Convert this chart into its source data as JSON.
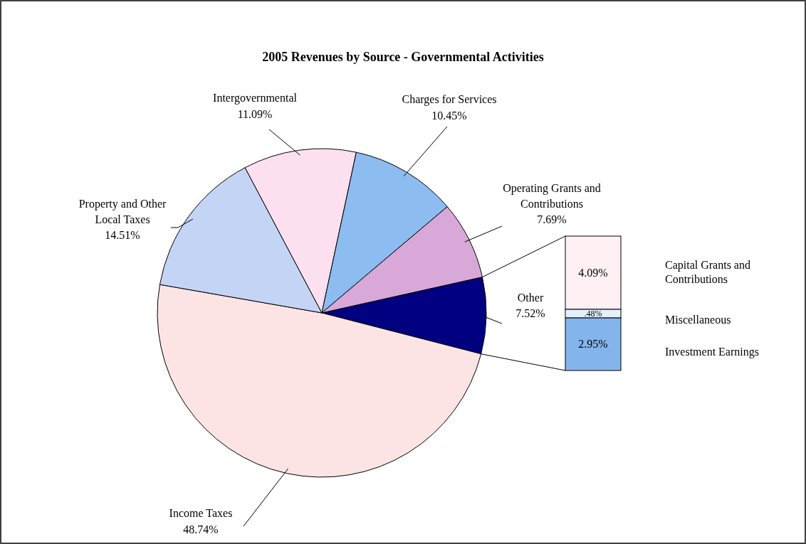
{
  "chart_data": [
    {
      "type": "pie",
      "title": "2005 Revenues by Source - Governmental Activities",
      "categories": [
        "Other",
        "Income Taxes",
        "Property and Other Local Taxes",
        "Intergovernmental",
        "Charges for Services",
        "Operating Grants and Contributions"
      ],
      "values": [
        7.52,
        48.74,
        14.51,
        11.09,
        10.45,
        7.69
      ],
      "value_labels": [
        "7.52%",
        "48.74%",
        "14.51%",
        "11.09%",
        "10.45%",
        "7.69%"
      ],
      "colors": [
        "#000080",
        "#fde4e4",
        "#c4d4f4",
        "#fde0f0",
        "#8cbcf0",
        "#d8a8d8"
      ]
    },
    {
      "type": "bar",
      "stacked": true,
      "legend": "right",
      "categories": [
        null
      ],
      "series": [
        {
          "name": "Investment Earnings",
          "color": "#84b4ec",
          "values": [
            2.95
          ],
          "value_labels": [
            "2.95%"
          ]
        },
        {
          "name": "Miscellaneous",
          "color": "#e4f0fc",
          "values": [
            0.48
          ],
          "value_labels": [
            ".48%"
          ]
        },
        {
          "name": "Capital Grants and Contributions",
          "color": "#fff0f4",
          "values": [
            4.09
          ],
          "value_labels": [
            "4.09%"
          ]
        }
      ]
    }
  ]
}
